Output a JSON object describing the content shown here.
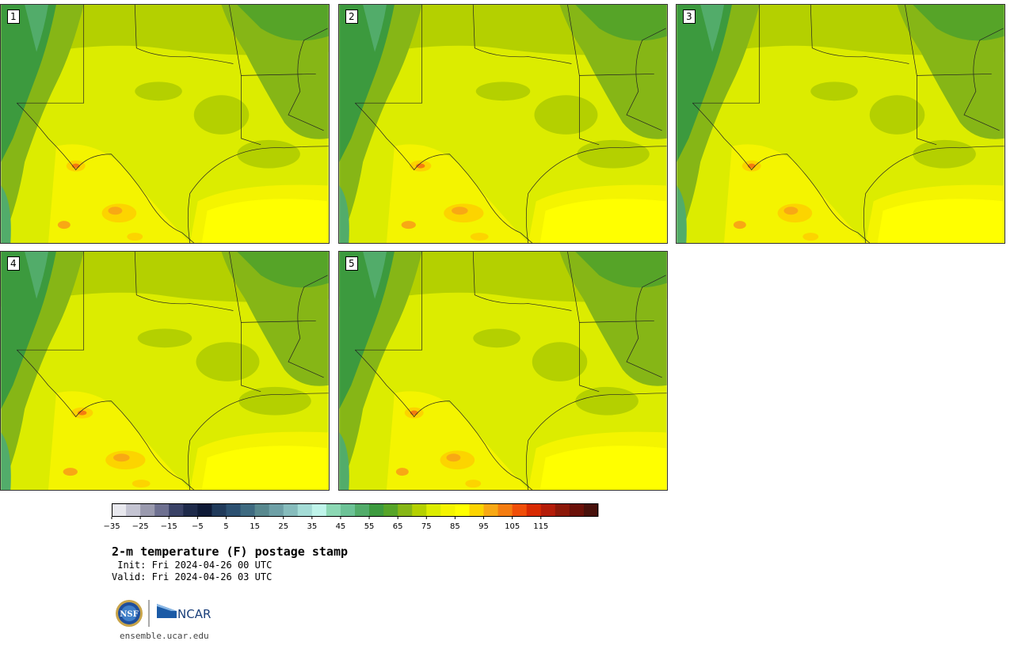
{
  "panels": [
    {
      "label": "1"
    },
    {
      "label": "2"
    },
    {
      "label": "3"
    },
    {
      "label": "4"
    },
    {
      "label": "5"
    }
  ],
  "colorbar": {
    "colors": [
      "#e8e8ee",
      "#c4c4d2",
      "#9a9aae",
      "#6e7090",
      "#3a4266",
      "#1e2a4a",
      "#0e1a36",
      "#203a5a",
      "#2c5070",
      "#3e6a80",
      "#58888e",
      "#6ea0a6",
      "#86bcbc",
      "#a4dcd6",
      "#bff4ea",
      "#8cd8b4",
      "#6cc296",
      "#52ac6a",
      "#3c9a3e",
      "#56a428",
      "#86b616",
      "#b4d000",
      "#dcec00",
      "#f4f400",
      "#ffff00",
      "#fcd400",
      "#f8a814",
      "#f47c10",
      "#f04e08",
      "#d82a02",
      "#b41c08",
      "#8c1808",
      "#6a1008",
      "#48100a"
    ],
    "tick_labels": [
      "−35",
      "−25",
      "−15",
      "−5",
      "5",
      "15",
      "25",
      "35",
      "45",
      "55",
      "65",
      "75",
      "85",
      "95",
      "105",
      "115"
    ]
  },
  "title": "2-m temperature (F) postage stamp",
  "init": " Init: Fri 2024-04-26 00 UTC",
  "valid": "Valid: Fri 2024-04-26 03 UTC",
  "logos": {
    "nsf": "NSF",
    "ncar": "NCAR"
  },
  "site": "ensemble.ucar.edu"
}
